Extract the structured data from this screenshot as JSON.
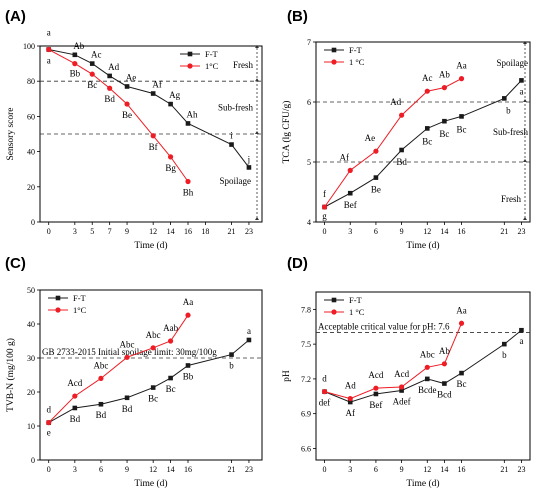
{
  "figure": {
    "colors": {
      "ft": "#1a1a1a",
      "one_c": "#ee1c24",
      "axis": "#000000",
      "dash": "#333333"
    },
    "icons": {
      "ft_marker": "filled-square",
      "one_c_marker": "filled-circle",
      "zone_arrow": "double-headed-arrow"
    }
  },
  "chart_data": [
    {
      "panel_label": "(A)",
      "type": "line",
      "xlabel": "Time (d)",
      "ylabel": "Sensory score",
      "xticks": [
        0,
        3,
        5,
        7,
        9,
        12,
        14,
        16,
        18,
        21,
        23
      ],
      "yticks": [
        0,
        20,
        40,
        60,
        80,
        100
      ],
      "xlim": [
        -1,
        24.5
      ],
      "ylim": [
        0,
        100
      ],
      "legend_position": "top-right",
      "series": [
        {
          "name": "F-T",
          "x": [
            0,
            3,
            5,
            7,
            9,
            12,
            14,
            16,
            21,
            23
          ],
          "y": [
            98,
            95,
            90,
            83,
            77,
            73,
            67,
            56,
            44,
            31
          ],
          "labels": [
            "a",
            "Ab",
            "Ac",
            "Ad",
            "Ae",
            "Af",
            "Ag",
            "Ah",
            "i",
            "j"
          ]
        },
        {
          "name": "1°C",
          "x": [
            0,
            3,
            5,
            7,
            9,
            12,
            14,
            16
          ],
          "y": [
            98,
            90,
            84,
            76,
            67,
            49,
            37,
            23
          ],
          "labels": [
            "a",
            "Bb",
            "Bc",
            "Bd",
            "Be",
            "Bf",
            "Bg",
            "Bh"
          ]
        }
      ],
      "reference_lines": [
        80,
        50
      ],
      "zones": [
        "Fresh",
        "Sub-fresh",
        "Spoilage"
      ]
    },
    {
      "panel_label": "(B)",
      "type": "line",
      "xlabel": "Time (d)",
      "ylabel": "TCA (lg CFU/g)",
      "xticks": [
        0,
        3,
        6,
        9,
        12,
        14,
        16,
        21,
        23
      ],
      "yticks": [
        4,
        5,
        6,
        7
      ],
      "xlim": [
        -1,
        24
      ],
      "ylim": [
        4,
        7
      ],
      "legend_position": "top-left",
      "series": [
        {
          "name": "F-T",
          "x": [
            0,
            3,
            6,
            9,
            12,
            14,
            16,
            21,
            23
          ],
          "y": [
            4.25,
            4.48,
            4.74,
            5.2,
            5.56,
            5.68,
            5.76,
            6.06,
            6.36
          ],
          "labels": [
            "g",
            "Bef",
            "Be",
            "Bd",
            "Bc",
            "Bc",
            "Bc",
            "b",
            "a"
          ]
        },
        {
          "name": "1 °C",
          "x": [
            0,
            3,
            6,
            9,
            12,
            14,
            16
          ],
          "y": [
            4.25,
            4.86,
            5.18,
            5.78,
            6.18,
            6.24,
            6.39
          ],
          "labels": [
            "f",
            "Af",
            "Ae",
            "Ad",
            "Ac",
            "Ab",
            "Aa"
          ]
        }
      ],
      "reference_lines": [
        6,
        5
      ],
      "zones": [
        "Spoilage",
        "Sub-fresh",
        "Fresh"
      ]
    },
    {
      "panel_label": "(C)",
      "type": "line",
      "xlabel": "Time (d)",
      "ylabel": "TVB-N (mg/100 g)",
      "xticks": [
        0,
        3,
        6,
        9,
        12,
        14,
        16,
        21,
        23
      ],
      "yticks": [
        0,
        10,
        20,
        30,
        40,
        50
      ],
      "xlim": [
        -1,
        24.5
      ],
      "ylim": [
        0,
        50
      ],
      "legend_position": "top-left",
      "series": [
        {
          "name": "F-T",
          "x": [
            0,
            3,
            6,
            9,
            12,
            14,
            16,
            21,
            23
          ],
          "y": [
            11,
            15.3,
            16.4,
            18.3,
            21.3,
            24.1,
            27.8,
            31,
            35.3
          ],
          "labels": [
            "e",
            "Bd",
            "Bd",
            "Bd",
            "Bc",
            "Bc",
            "Bb",
            "b",
            "a"
          ]
        },
        {
          "name": "1°C",
          "x": [
            0,
            3,
            6,
            9,
            12,
            14,
            16
          ],
          "y": [
            11,
            18.8,
            24,
            30.2,
            33,
            35,
            42.6
          ],
          "labels": [
            "d",
            "Acd",
            "Abc",
            "Abc",
            "Abc",
            "Aab",
            "Aa"
          ]
        }
      ],
      "reference_lines": [
        30
      ],
      "reference_label": "GB 2733-2015 Initial spoilage limit: 30mg/100g"
    },
    {
      "panel_label": "(D)",
      "type": "line",
      "xlabel": "Time (d)",
      "ylabel": "pH",
      "xticks": [
        0,
        3,
        6,
        9,
        12,
        14,
        16,
        21,
        23
      ],
      "yticks": [
        6.6,
        6.9,
        7.2,
        7.5,
        7.8
      ],
      "xlim": [
        -1,
        24
      ],
      "ylim": [
        6.5,
        7.95
      ],
      "legend_position": "top-left",
      "series": [
        {
          "name": "F-T",
          "x": [
            0,
            3,
            6,
            9,
            12,
            14,
            16,
            21,
            23
          ],
          "y": [
            7.09,
            7.0,
            7.07,
            7.1,
            7.2,
            7.16,
            7.25,
            7.5,
            7.62
          ],
          "labels": [
            "def",
            "Af",
            "Bef",
            "Adef",
            "Bcde",
            "Bcd",
            "Bc",
            "b",
            "a"
          ]
        },
        {
          "name": "1 °C",
          "x": [
            0,
            3,
            6,
            9,
            12,
            14,
            16
          ],
          "y": [
            7.09,
            7.03,
            7.12,
            7.13,
            7.3,
            7.33,
            7.68
          ],
          "labels": [
            "d",
            "Ad",
            "Acd",
            "Acd",
            "Abc",
            "Ab",
            "Aa"
          ]
        }
      ],
      "reference_lines": [
        7.6
      ],
      "reference_label": "Acceptable critical value for pH: 7.6"
    }
  ]
}
